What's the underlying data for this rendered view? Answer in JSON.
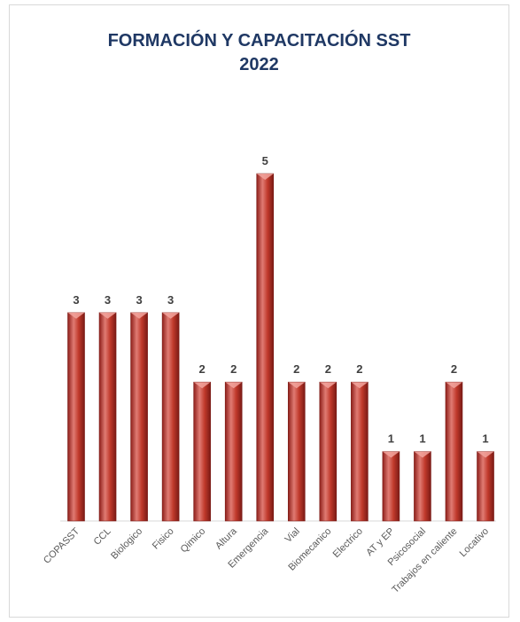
{
  "chart_data": {
    "type": "bar",
    "title": [
      "FORMACIÓN Y CAPACITACIÓN SST",
      "2022"
    ],
    "categories": [
      "COPASST",
      "CCL",
      "Biologico",
      "Fisico",
      "Qimico",
      "Altura",
      "Emergencia",
      "Vial",
      "Biomecanico",
      "Electrico",
      "AT y EP",
      "Psicosocial",
      "Trabajos en caliente",
      "Locativo"
    ],
    "values": [
      3,
      3,
      3,
      3,
      2,
      2,
      5,
      2,
      2,
      2,
      1,
      1,
      2,
      1
    ],
    "ylim": [
      0,
      5
    ],
    "grid": false,
    "legend": "none",
    "data_labels": true,
    "bar_color": "#c0392b",
    "bar_dark": "#8e1f1a",
    "bar_light": "#e07b73",
    "label_color": "#404040",
    "title_color": "#1f3864"
  }
}
